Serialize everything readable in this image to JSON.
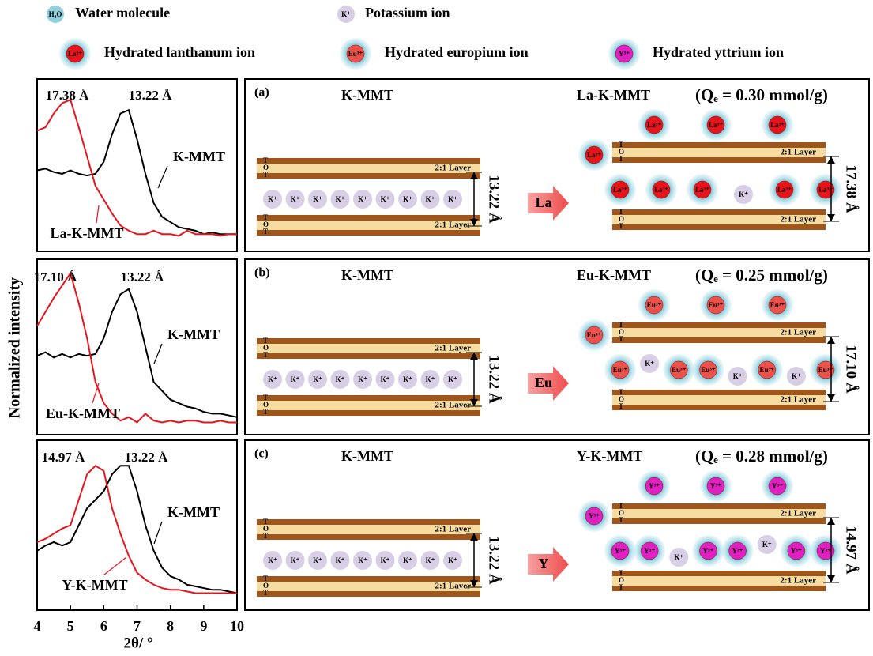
{
  "figure": {
    "y_label": "Normalized intensity",
    "x_label": "2θ/ °"
  },
  "legend": [
    {
      "icon": "H₂O",
      "label": "Water molecule",
      "color": "#8fd0dc",
      "hydrated": false
    },
    {
      "icon": "K⁺",
      "label": "Potassium ion",
      "color": "#d8cfe6",
      "hydrated": false
    },
    {
      "icon": "La³⁺",
      "label": "Hydrated lanthanum ion",
      "color": "#e8141c",
      "hydrated": true
    },
    {
      "icon": "Eu³⁺",
      "label": "Hydrated europium ion",
      "color": "#f0504a",
      "hydrated": true
    },
    {
      "icon": "Y³⁺",
      "label": "Hydrated yttrium ion",
      "color": "#e020c0",
      "hydrated": true
    }
  ],
  "chart_data": [
    {
      "type": "line",
      "annotations": [
        "17.38 Å",
        "13.22 Å"
      ],
      "xlim": [
        4,
        10
      ],
      "ylim": [
        0,
        1
      ],
      "x": [
        4,
        4.25,
        4.5,
        4.75,
        5,
        5.25,
        5.5,
        5.75,
        6,
        6.25,
        6.5,
        6.75,
        7,
        7.25,
        7.5,
        7.75,
        8,
        8.25,
        8.5,
        8.75,
        9,
        9.25,
        9.5,
        9.75,
        10
      ],
      "series": [
        {
          "name": "K-MMT",
          "color": "#000000",
          "values": [
            0.47,
            0.48,
            0.46,
            0.45,
            0.47,
            0.45,
            0.44,
            0.45,
            0.52,
            0.68,
            0.8,
            0.82,
            0.65,
            0.45,
            0.28,
            0.2,
            0.17,
            0.14,
            0.13,
            0.12,
            0.1,
            0.11,
            0.1,
            0.1,
            0.1
          ]
        },
        {
          "name": "La-K-MMT",
          "color": "#e8141c",
          "values": [
            0.7,
            0.72,
            0.8,
            0.86,
            0.88,
            0.72,
            0.55,
            0.38,
            0.3,
            0.22,
            0.15,
            0.12,
            0.1,
            0.1,
            0.12,
            0.1,
            0.1,
            0.09,
            0.12,
            0.1,
            0.1,
            0.1,
            0.09,
            0.1,
            0.1
          ]
        }
      ]
    },
    {
      "type": "line",
      "annotations": [
        "17.10 Å",
        "13.22 Å"
      ],
      "xlim": [
        4,
        10
      ],
      "ylim": [
        0,
        1
      ],
      "x": [
        4,
        4.25,
        4.5,
        4.75,
        5,
        5.25,
        5.5,
        5.75,
        6,
        6.25,
        6.5,
        6.75,
        7,
        7.25,
        7.5,
        7.75,
        8,
        8.25,
        8.5,
        8.75,
        9,
        9.25,
        9.5,
        9.75,
        10
      ],
      "series": [
        {
          "name": "K-MMT",
          "color": "#000000",
          "values": [
            0.45,
            0.47,
            0.44,
            0.46,
            0.44,
            0.46,
            0.45,
            0.46,
            0.55,
            0.7,
            0.8,
            0.83,
            0.7,
            0.5,
            0.3,
            0.25,
            0.2,
            0.18,
            0.16,
            0.15,
            0.13,
            0.12,
            0.12,
            0.11,
            0.1
          ]
        },
        {
          "name": "Eu-K-MMT",
          "color": "#e8141c",
          "values": [
            0.62,
            0.7,
            0.78,
            0.85,
            0.92,
            0.75,
            0.55,
            0.3,
            0.18,
            0.12,
            0.08,
            0.1,
            0.07,
            0.12,
            0.08,
            0.07,
            0.08,
            0.07,
            0.08,
            0.08,
            0.07,
            0.07,
            0.08,
            0.07,
            0.07
          ]
        }
      ]
    },
    {
      "type": "line",
      "annotations": [
        "14.97 Å",
        "13.22 Å"
      ],
      "xlim": [
        4,
        10
      ],
      "ylim": [
        0,
        1
      ],
      "xticks": [
        4,
        5,
        6,
        7,
        8,
        9,
        10
      ],
      "x": [
        4,
        4.25,
        4.5,
        4.75,
        5,
        5.25,
        5.5,
        5.75,
        6,
        6.25,
        6.5,
        6.75,
        7,
        7.25,
        7.5,
        7.75,
        8,
        8.25,
        8.5,
        8.75,
        9,
        9.25,
        9.5,
        9.75,
        10
      ],
      "series": [
        {
          "name": "K-MMT",
          "color": "#000000",
          "values": [
            0.35,
            0.38,
            0.4,
            0.38,
            0.4,
            0.5,
            0.6,
            0.65,
            0.7,
            0.8,
            0.85,
            0.85,
            0.7,
            0.5,
            0.35,
            0.25,
            0.2,
            0.18,
            0.15,
            0.14,
            0.13,
            0.12,
            0.12,
            0.11,
            0.1
          ]
        },
        {
          "name": "Y-K-MMT",
          "color": "#e8141c",
          "values": [
            0.4,
            0.42,
            0.45,
            0.48,
            0.5,
            0.65,
            0.8,
            0.85,
            0.82,
            0.6,
            0.45,
            0.32,
            0.22,
            0.18,
            0.15,
            0.13,
            0.12,
            0.12,
            0.11,
            0.1,
            0.1,
            0.1,
            0.1,
            0.1,
            0.1
          ]
        }
      ]
    }
  ],
  "layer": {
    "t": "T",
    "o": "O",
    "name": "2:1 Layer"
  },
  "panels": [
    {
      "label": "(a)",
      "left_title": "K-MMT",
      "right_title": "La-K-MMT",
      "qe": "(Qₑ = 0.30 mmol/g)",
      "arrow_label": "La",
      "left_spacing": "13.22 Å",
      "right_spacing": "17.38 Å",
      "ion_color": "#e8141c",
      "k_color": "#d8cfe6",
      "left_ions": [
        "K⁺",
        "K⁺",
        "K⁺",
        "K⁺",
        "K⁺",
        "K⁺",
        "K⁺",
        "K⁺",
        "K⁺"
      ],
      "top_ions": [
        "La³⁺",
        "La³⁺",
        "La³⁺"
      ],
      "side_ion": "La³⁺",
      "inter_ions": [
        "La³⁺",
        "La³⁺",
        "La³⁺",
        "K⁺",
        "La³⁺",
        "La³⁺"
      ]
    },
    {
      "label": "(b)",
      "left_title": "K-MMT",
      "right_title": "Eu-K-MMT",
      "qe": "(Qₑ = 0.25 mmol/g)",
      "arrow_label": "Eu",
      "left_spacing": "13.22 Å",
      "right_spacing": "17.10 Å",
      "ion_color": "#f0504a",
      "k_color": "#d8cfe6",
      "left_ions": [
        "K⁺",
        "K⁺",
        "K⁺",
        "K⁺",
        "K⁺",
        "K⁺",
        "K⁺",
        "K⁺",
        "K⁺"
      ],
      "top_ions": [
        "Eu³⁺",
        "Eu³⁺",
        "Eu³⁺"
      ],
      "side_ion": "Eu³⁺",
      "inter_ions": [
        "Eu³⁺",
        "K⁺",
        "Eu³⁺",
        "Eu³⁺",
        "K⁺",
        "Eu³⁺",
        "K⁺",
        "Eu³⁺"
      ]
    },
    {
      "label": "(c)",
      "left_title": "K-MMT",
      "right_title": "Y-K-MMT",
      "qe": "(Qₑ = 0.28 mmol/g)",
      "arrow_label": "Y",
      "left_spacing": "13.22 Å",
      "right_spacing": "14.97 Å",
      "ion_color": "#e020c0",
      "k_color": "#d8cfe6",
      "left_ions": [
        "K⁺",
        "K⁺",
        "K⁺",
        "K⁺",
        "K⁺",
        "K⁺",
        "K⁺",
        "K⁺",
        "K⁺"
      ],
      "top_ions": [
        "Y³⁺",
        "Y³⁺",
        "Y³⁺"
      ],
      "side_ion": "Y³⁺",
      "inter_ions": [
        "Y³⁺",
        "Y³⁺",
        "K⁺",
        "Y³⁺",
        "Y³⁺",
        "K⁺",
        "Y³⁺",
        "Y³⁺"
      ]
    }
  ]
}
